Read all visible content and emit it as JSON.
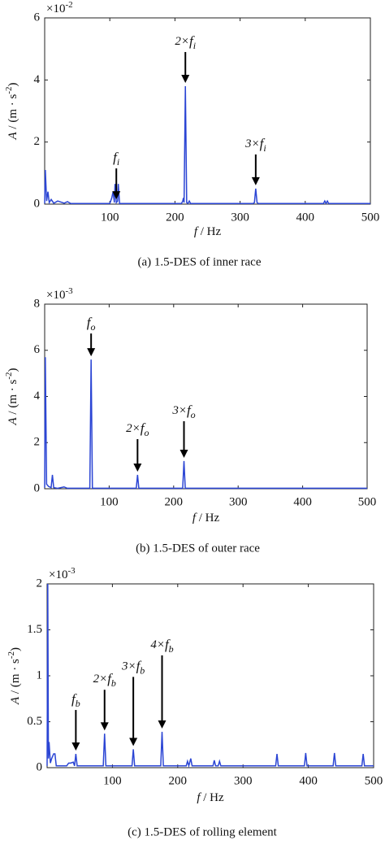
{
  "chart_data": [
    {
      "type": "line",
      "color": "#2b45d4",
      "multiplier": {
        "base": "×10",
        "exponent": "-2"
      },
      "ylabel": [
        "A",
        " / (m · s",
        "-2",
        ")"
      ],
      "xlabel": [
        "f",
        " / Hz"
      ],
      "caption": "(a) 1.5-DES of inner race",
      "xlim": [
        0,
        500
      ],
      "xticks": [
        100,
        200,
        300,
        400,
        500
      ],
      "ylim": [
        0,
        6
      ],
      "yticks": [
        0,
        2,
        4,
        6
      ],
      "x": [
        0,
        1,
        3,
        5,
        7,
        10,
        14,
        20,
        30,
        35,
        40,
        60,
        100,
        103,
        105,
        107,
        108,
        110,
        112,
        113,
        115,
        140,
        210,
        212,
        213,
        214,
        216,
        218,
        220,
        222,
        224,
        320,
        322,
        324,
        326,
        328,
        428,
        430,
        432,
        434,
        436,
        500
      ],
      "values": [
        0.02,
        1.1,
        0.1,
        0.4,
        0.05,
        0.15,
        0.03,
        0.1,
        0.03,
        0.08,
        0.02,
        0.02,
        0.02,
        0.2,
        0.4,
        0.05,
        0.65,
        0.05,
        0.1,
        0.65,
        0.02,
        0.02,
        0.02,
        0.1,
        0.2,
        0.05,
        3.8,
        0.05,
        0.02,
        0.1,
        0.02,
        0.02,
        0.05,
        0.5,
        0.05,
        0.02,
        0.02,
        0.1,
        0.02,
        0.1,
        0.02,
        0.02
      ],
      "annotations": [
        {
          "var": "f",
          "sub": "i",
          "x": 110
        },
        {
          "prefix": "2×",
          "var": "f",
          "sub": "i",
          "x": 216
        },
        {
          "prefix": "3×",
          "var": "f",
          "sub": "i",
          "x": 324
        }
      ]
    },
    {
      "type": "line",
      "color": "#2b45d4",
      "multiplier": {
        "base": "×10",
        "exponent": "-3"
      },
      "ylabel": [
        "A",
        " / (m · s",
        "-2",
        ")"
      ],
      "xlabel": [
        "f",
        " / Hz"
      ],
      "caption": "(b) 1.5-DES of outer race",
      "xlim": [
        0,
        500
      ],
      "xticks": [
        100,
        200,
        300,
        400,
        500
      ],
      "ylim": [
        0,
        8
      ],
      "yticks": [
        0,
        2,
        4,
        6,
        8
      ],
      "x": [
        0,
        1,
        3,
        6,
        10,
        12,
        14,
        20,
        30,
        35,
        70,
        72,
        74,
        142,
        144,
        146,
        214,
        216,
        218,
        500
      ],
      "values": [
        0.05,
        5.7,
        0.2,
        0.1,
        0.05,
        0.6,
        0.05,
        0.02,
        0.08,
        0.02,
        0.02,
        5.6,
        0.02,
        0.02,
        0.6,
        0.02,
        0.02,
        1.2,
        0.02,
        0.02
      ],
      "annotations": [
        {
          "var": "f",
          "sub": "o",
          "x": 72
        },
        {
          "prefix": "2×",
          "var": "f",
          "sub": "o",
          "x": 144
        },
        {
          "prefix": "3×",
          "var": "f",
          "sub": "o",
          "x": 216
        }
      ]
    },
    {
      "type": "line",
      "color": "#2b45d4",
      "multiplier": {
        "base": "×10",
        "exponent": "-3"
      },
      "ylabel": [
        "A",
        " / (m · s",
        "-2",
        ")"
      ],
      "xlabel": [
        "f",
        " / Hz"
      ],
      "caption": "(c) 1.5-DES of rolling element",
      "xlim": [
        0,
        500
      ],
      "xticks": [
        100,
        200,
        300,
        400,
        500
      ],
      "ylim": [
        0,
        2
      ],
      "yticks": [
        0,
        0.5,
        1,
        1.5,
        2
      ],
      "x": [
        0,
        1,
        2,
        3,
        5,
        7,
        10,
        12,
        14,
        30,
        33,
        36,
        40,
        42,
        44,
        46,
        86,
        88,
        90,
        130,
        132,
        134,
        174,
        176,
        178,
        213,
        215,
        217,
        220,
        222,
        254,
        256,
        258,
        262,
        264,
        266,
        350,
        352,
        354,
        394,
        396,
        398,
        438,
        440,
        442,
        482,
        484,
        486,
        500
      ],
      "values": [
        0.02,
        2.0,
        0.1,
        0.28,
        0.05,
        0.1,
        0.15,
        0.15,
        0.02,
        0.02,
        0.05,
        0.05,
        0.06,
        0.02,
        0.15,
        0.02,
        0.02,
        0.37,
        0.02,
        0.02,
        0.2,
        0.02,
        0.02,
        0.39,
        0.02,
        0.02,
        0.07,
        0.02,
        0.1,
        0.02,
        0.02,
        0.08,
        0.02,
        0.02,
        0.07,
        0.02,
        0.02,
        0.15,
        0.02,
        0.02,
        0.16,
        0.02,
        0.02,
        0.16,
        0.02,
        0.02,
        0.15,
        0.02,
        0.02
      ],
      "annotations": [
        {
          "var": "f",
          "sub": "b",
          "x": 44
        },
        {
          "prefix": "2×",
          "var": "f",
          "sub": "b",
          "x": 88
        },
        {
          "prefix": "3×",
          "var": "f",
          "sub": "b",
          "x": 132
        },
        {
          "prefix": "4×",
          "var": "f",
          "sub": "b",
          "x": 176
        }
      ]
    }
  ]
}
